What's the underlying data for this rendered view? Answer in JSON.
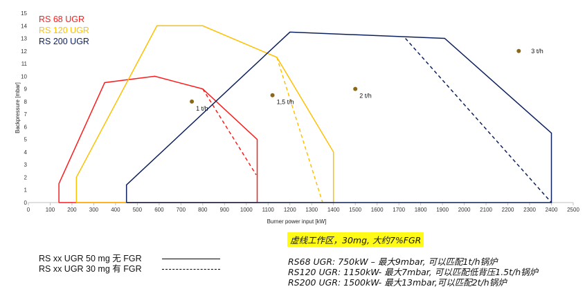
{
  "chart_data": {
    "type": "line",
    "xlabel": "Burner power input [kW]",
    "ylabel": "Backpressure [mbar]",
    "xlim": [
      0,
      2500
    ],
    "ylim": [
      0,
      15
    ],
    "xticks": [
      0,
      100,
      200,
      300,
      400,
      500,
      600,
      700,
      800,
      900,
      1000,
      1100,
      1200,
      1300,
      1400,
      1500,
      1600,
      1700,
      1800,
      1900,
      2000,
      2100,
      2200,
      2300,
      2400,
      2500
    ],
    "yticks": [
      0,
      1,
      2,
      3,
      4,
      5,
      6,
      7,
      8,
      9,
      10,
      11,
      12,
      13,
      14,
      15
    ],
    "grid": false,
    "legend_position": "top-left",
    "series": [
      {
        "name": "RS 68 UGR",
        "color": "#ff1a1a",
        "style": "solid",
        "x": [
          140,
          140,
          350,
          580,
          800,
          1050,
          1050,
          140
        ],
        "y": [
          0,
          1.5,
          9.5,
          10,
          9,
          5,
          0,
          0
        ]
      },
      {
        "name": "RS 68 UGR",
        "color": "#ff1a1a",
        "style": "dashed",
        "show_in_legend": false,
        "x": [
          800,
          1045
        ],
        "y": [
          9,
          2.2
        ]
      },
      {
        "name": "RS 120 UGR",
        "color": "#ffc000",
        "style": "solid",
        "x": [
          220,
          220,
          590,
          800,
          1140,
          1400,
          1400,
          220
        ],
        "y": [
          0,
          2,
          14,
          14,
          11.5,
          4,
          0,
          0
        ]
      },
      {
        "name": "RS 120 UGR",
        "color": "#ffc000",
        "style": "dashed",
        "show_in_legend": false,
        "x": [
          1140,
          1350
        ],
        "y": [
          11.5,
          0
        ]
      },
      {
        "name": "RS 200 UGR",
        "color": "#0b1f5c",
        "style": "solid",
        "x": [
          450,
          450,
          1200,
          1910,
          2400,
          2400,
          450
        ],
        "y": [
          0,
          1.4,
          13.5,
          13,
          5.5,
          0,
          0
        ]
      },
      {
        "name": "RS 200 UGR",
        "color": "#0b1f5c",
        "style": "dashed",
        "show_in_legend": false,
        "x": [
          1730,
          2400
        ],
        "y": [
          13,
          0
        ]
      }
    ],
    "points": [
      {
        "label": "1 t/h",
        "x": 750,
        "y": 8,
        "color": "#8b6914"
      },
      {
        "label": "1,5 t/h",
        "x": 1120,
        "y": 8.5,
        "color": "#8b6914"
      },
      {
        "label": "2 t/h",
        "x": 1500,
        "y": 9,
        "color": "#8b6914"
      },
      {
        "label": "3 t/h",
        "x": 2250,
        "y": 12,
        "color": "#8b6914"
      }
    ]
  },
  "line_legend": [
    {
      "label": "RS xx UGR 50 mg 无 FGR",
      "style": "solid"
    },
    {
      "label": "RS xx UGR 30 mg 有 FGR",
      "style": "dashed"
    }
  ],
  "highlight_note": "虚线工作区，30mg, 大约7%FGR",
  "notes": [
    "RS68 UGR: 750kW – 最大9mbar, 可以匹配1t/h锅炉",
    "RS120 UGR: 1150kW- 最大7mbar, 可以匹配低背压1.5t/h锅炉",
    "RS200 UGR:  1500kW- 最大13mbar,可以匹配2t/h锅炉"
  ]
}
